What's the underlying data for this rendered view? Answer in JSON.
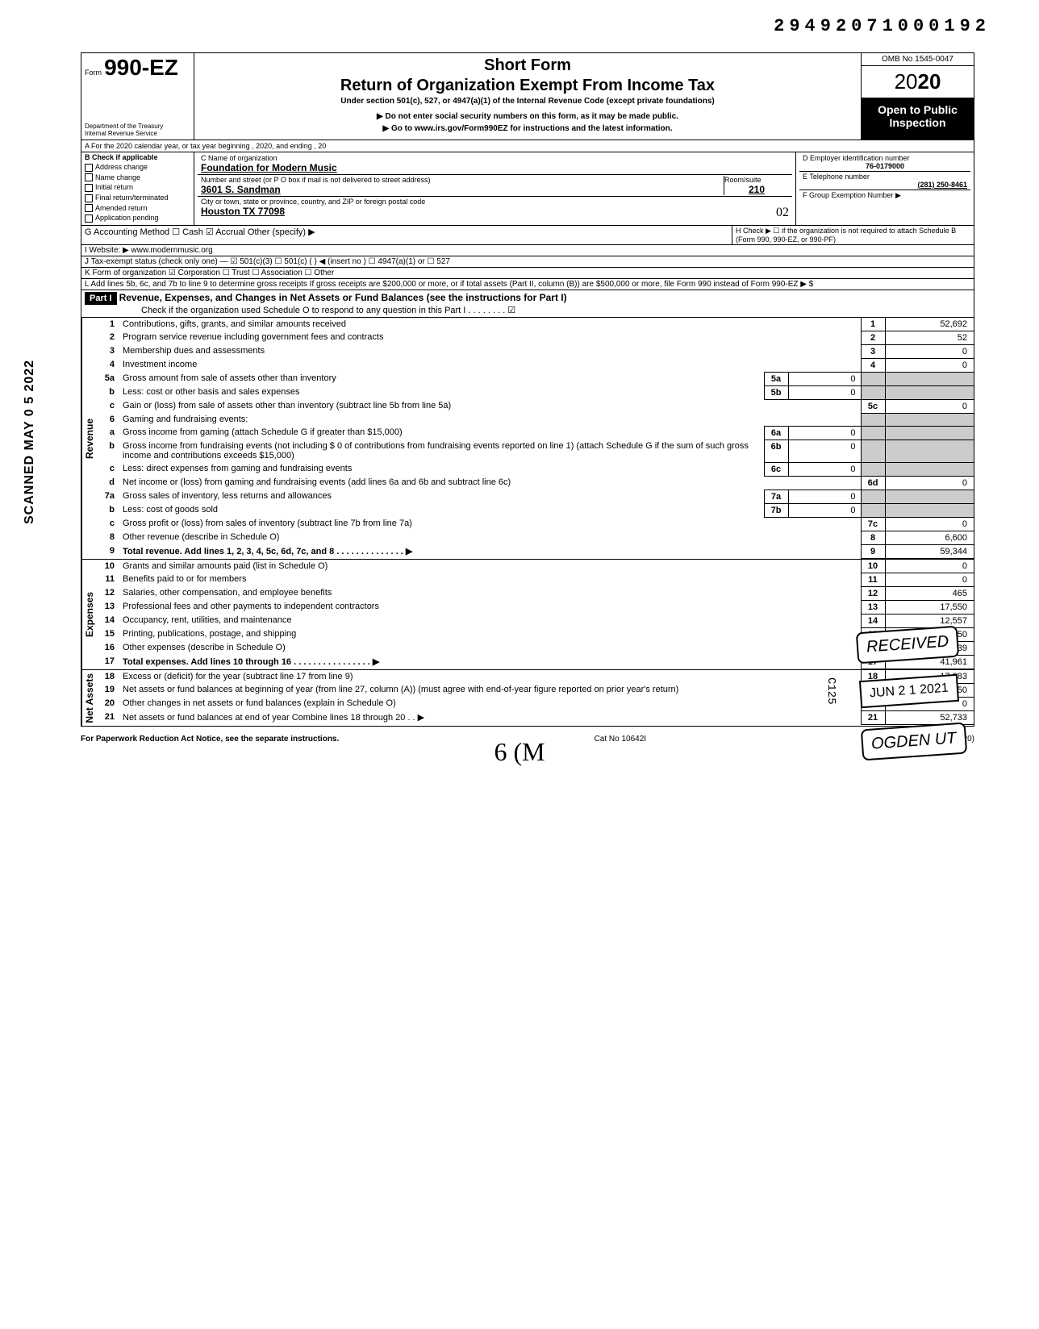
{
  "document_number": "29492071000192",
  "omb": "OMB No 1545-0047",
  "year_prefix": "20",
  "year_bold": "20",
  "form": {
    "prefix": "Form",
    "number": "990-EZ",
    "short": "Short Form",
    "title": "Return of Organization Exempt From Income Tax",
    "under": "Under section 501(c), 527, or 4947(a)(1) of the Internal Revenue Code (except private foundations)",
    "warn": "▶ Do not enter social security numbers on this form, as it may be made public.",
    "goto": "▶ Go to www.irs.gov/Form990EZ for instructions and the latest information.",
    "dept": "Department of the Treasury\nInternal Revenue Service",
    "open": "Open to Public Inspection"
  },
  "lineA": "A For the 2020 calendar year, or tax year beginning                                           , 2020, and ending                                   , 20",
  "checkB": {
    "title": "B Check if applicable",
    "items": [
      "Address change",
      "Name change",
      "Initial return",
      "Final return/terminated",
      "Amended return",
      "Application pending"
    ]
  },
  "org": {
    "name_label": "C Name of organization",
    "name": "Foundation for Modern Music",
    "addr_label": "Number and street (or P O  box if mail is not delivered to street address)",
    "room_label": "Room/suite",
    "addr": "3601 S. Sandman",
    "room": "210",
    "city_label": "City or town, state or province, country, and ZIP or foreign postal code",
    "city": "Houston TX 77098",
    "ein_label": "D Employer identification number",
    "ein": "76-0179000",
    "phone_label": "E Telephone number",
    "phone": "(281) 250-8461",
    "group_label": "F Group Exemption Number ▶",
    "hand_note": "02"
  },
  "lineG": "G Accounting Method    ☐ Cash    ☑ Accrual    Other (specify) ▶",
  "lineH": "H Check ▶ ☐ if the organization is not required to attach Schedule B (Form 990, 990-EZ, or 990-PF)",
  "lineI": "I Website: ▶    www.modernmusic.org",
  "lineJ": "J Tax-exempt status (check only one) — ☑ 501(c)(3)   ☐ 501(c) (      ) ◀ (insert no )  ☐ 4947(a)(1) or   ☐ 527",
  "lineK": "K Form of organization   ☑ Corporation   ☐ Trust   ☐ Association   ☐ Other",
  "lineL": "L Add lines 5b, 6c, and 7b to line 9 to determine gross receipts  If gross receipts are $200,000 or more, or if total assets (Part II, column (B)) are $500,000 or more, file Form 990 instead of Form 990-EZ    ▶  $",
  "part1": {
    "label": "Part I",
    "title": "Revenue, Expenses, and Changes in Net Assets or Fund Balances (see the instructions for Part I)",
    "check": "Check if the organization used Schedule O to respond to any question in this Part I   .    .    .    .    .    .    .    .   ☑"
  },
  "sidebar_scan": "SCANNED MAY 0 5 2022",
  "sections": {
    "revenue": "Revenue",
    "expenses": "Expenses",
    "netassets": "Net Assets"
  },
  "rows": [
    {
      "n": "1",
      "d": "Contributions, gifts, grants, and similar amounts received",
      "num": "1",
      "val": "52,692"
    },
    {
      "n": "2",
      "d": "Program service revenue including government fees and contracts",
      "num": "2",
      "val": "52"
    },
    {
      "n": "3",
      "d": "Membership dues and assessments",
      "num": "3",
      "val": "0"
    },
    {
      "n": "4",
      "d": "Investment income",
      "num": "4",
      "val": "0"
    },
    {
      "n": "5a",
      "d": "Gross amount from sale of assets other than inventory",
      "mini_n": "5a",
      "mini_v": "0"
    },
    {
      "n": "b",
      "d": "Less: cost or other basis and sales expenses",
      "mini_n": "5b",
      "mini_v": "0"
    },
    {
      "n": "c",
      "d": "Gain or (loss) from sale of assets other than inventory (subtract line 5b from line 5a)",
      "num": "5c",
      "val": "0"
    },
    {
      "n": "6",
      "d": "Gaming and fundraising events:"
    },
    {
      "n": "a",
      "d": "Gross income from gaming (attach Schedule G if greater than $15,000)",
      "mini_n": "6a",
      "mini_v": "0"
    },
    {
      "n": "b",
      "d": "Gross income from fundraising events (not including  $                    0 of contributions from fundraising events reported on line 1) (attach Schedule G if the sum of such gross income and contributions exceeds $15,000)",
      "mini_n": "6b",
      "mini_v": "0"
    },
    {
      "n": "c",
      "d": "Less: direct expenses from gaming and fundraising events",
      "mini_n": "6c",
      "mini_v": "0"
    },
    {
      "n": "d",
      "d": "Net income or (loss) from gaming and fundraising events (add lines 6a and 6b and subtract line 6c)",
      "num": "6d",
      "val": "0"
    },
    {
      "n": "7a",
      "d": "Gross sales of inventory, less returns and allowances",
      "mini_n": "7a",
      "mini_v": "0"
    },
    {
      "n": "b",
      "d": "Less: cost of goods sold",
      "mini_n": "7b",
      "mini_v": "0"
    },
    {
      "n": "c",
      "d": "Gross profit or (loss) from sales of inventory (subtract line 7b from line 7a)",
      "num": "7c",
      "val": "0"
    },
    {
      "n": "8",
      "d": "Other revenue (describe in Schedule O)",
      "num": "8",
      "val": "6,600"
    },
    {
      "n": "9",
      "d": "Total revenue. Add lines 1, 2, 3, 4, 5c, 6d, 7c, and 8    .    .    .    .    .    .    .    .    .    .    .    .    .    . ▶",
      "num": "9",
      "val": "59,344",
      "bold": true
    }
  ],
  "exp_rows": [
    {
      "n": "10",
      "d": "Grants and similar amounts paid (list in Schedule O)",
      "num": "10",
      "val": "0"
    },
    {
      "n": "11",
      "d": "Benefits paid to or for members",
      "num": "11",
      "val": "0"
    },
    {
      "n": "12",
      "d": "Salaries, other compensation, and employee benefits",
      "num": "12",
      "val": "465"
    },
    {
      "n": "13",
      "d": "Professional fees and other payments to independent contractors",
      "num": "13",
      "val": "17,550"
    },
    {
      "n": "14",
      "d": "Occupancy, rent, utilities, and maintenance",
      "num": "14",
      "val": "12,557"
    },
    {
      "n": "15",
      "d": "Printing, publications, postage, and shipping",
      "num": "15",
      "val": "1,350"
    },
    {
      "n": "16",
      "d": "Other expenses (describe in Schedule O)",
      "num": "16",
      "val": "10,039"
    },
    {
      "n": "17",
      "d": "Total expenses. Add lines 10 through 16   .    .    .    .    .    .    .    .    .    .    .    .    .    .    .    . ▶",
      "num": "17",
      "val": "41,961",
      "bold": true
    }
  ],
  "na_rows": [
    {
      "n": "18",
      "d": "Excess or (deficit) for the year (subtract line 17 from line 9)",
      "num": "18",
      "val": "17,383"
    },
    {
      "n": "19",
      "d": "Net assets or fund balances at beginning of year (from line 27, column (A)) (must agree with end-of-year figure reported on prior year's return)",
      "num": "19",
      "val": "35,350"
    },
    {
      "n": "20",
      "d": "Other changes in net assets or fund balances (explain in Schedule O)",
      "num": "20",
      "val": "0"
    },
    {
      "n": "21",
      "d": "Net assets or fund balances at end of year  Combine lines 18 through 20       .     .        ▶",
      "num": "21",
      "val": "52,733"
    }
  ],
  "stamps": {
    "received": "RECEIVED",
    "date": "JUN 2 1 2021",
    "ogden": "OGDEN UT",
    "c125": "C125"
  },
  "footer": {
    "left": "For Paperwork Reduction Act Notice, see the separate instructions.",
    "mid": "Cat No  10642I",
    "right": "Form 990-EZ (2020)",
    "hand": "6 (M"
  }
}
